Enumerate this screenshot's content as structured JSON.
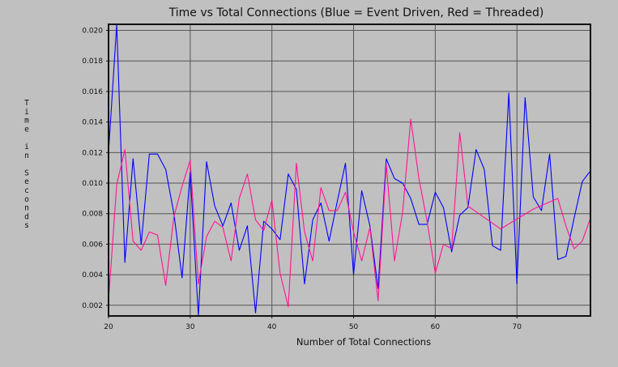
{
  "chart_data": {
    "type": "line",
    "title": "Time vs Total Connections (Blue = Event Driven, Red = Threaded)",
    "xlabel": "Number of Total Connections",
    "ylabel": "Time in Seconds",
    "xlim": [
      20,
      79
    ],
    "ylim": [
      0.0013,
      0.0204
    ],
    "xticks": [
      20,
      30,
      40,
      50,
      60,
      70
    ],
    "xtick_labels": [
      "20",
      "30",
      "40",
      "50",
      "60",
      "70"
    ],
    "yticks": [
      0.002,
      0.004,
      0.006,
      0.008,
      0.01,
      0.012,
      0.014,
      0.016,
      0.018,
      0.02
    ],
    "ytick_labels": [
      "0.002",
      "0.004",
      "0.006",
      "0.008",
      "0.010",
      "0.012",
      "0.014",
      "0.016",
      "0.018",
      "0.020"
    ],
    "grid": true,
    "legend": "none",
    "colors": {
      "background": "#c0c0c0",
      "plot_bg": "#c0c0c0",
      "grid": "#555555",
      "frame": "#111111"
    },
    "series": [
      {
        "color": "#0000ff",
        "x": [
          20,
          21,
          22,
          23,
          24,
          25,
          26,
          27,
          28,
          29,
          30,
          31,
          32,
          33,
          34,
          35,
          36,
          37,
          38,
          39,
          40,
          41,
          42,
          43,
          44,
          45,
          46,
          47,
          48,
          49,
          50,
          51,
          52,
          53,
          54,
          55,
          56,
          57,
          58,
          59,
          60,
          61,
          62,
          63,
          64,
          65,
          66,
          67,
          68,
          69,
          70,
          71,
          72,
          73,
          74,
          75,
          76,
          77,
          78,
          79
        ],
        "y": [
          0.012,
          0.0204,
          0.0048,
          0.0116,
          0.006,
          0.0119,
          0.0119,
          0.0109,
          0.008,
          0.0038,
          0.0107,
          0.0013,
          0.0114,
          0.0085,
          0.0072,
          0.0087,
          0.0056,
          0.0072,
          0.0015,
          0.0075,
          0.007,
          0.0063,
          0.0106,
          0.0096,
          0.0034,
          0.0076,
          0.0087,
          0.0062,
          0.0088,
          0.0113,
          0.004,
          0.0095,
          0.0072,
          0.0031,
          0.0116,
          0.0103,
          0.01,
          0.009,
          0.0073,
          0.0073,
          0.0094,
          0.0084,
          0.0055,
          0.0079,
          0.0084,
          0.0122,
          0.0109,
          0.0059,
          0.0056,
          0.0159,
          0.0034,
          0.0156,
          0.0091,
          0.0082,
          0.0119,
          0.005,
          0.0052,
          0.0077,
          0.0101,
          0.0108
        ]
      },
      {
        "color": "#ff1493",
        "x": [
          20,
          21,
          22,
          23,
          24,
          25,
          26,
          27,
          28,
          29,
          30,
          31,
          32,
          33,
          34,
          35,
          36,
          37,
          38,
          39,
          40,
          41,
          42,
          43,
          44,
          45,
          46,
          47,
          48,
          49,
          50,
          51,
          52,
          53,
          54,
          55,
          56,
          57,
          58,
          59,
          60,
          61,
          62,
          63,
          64,
          68,
          72,
          75,
          76,
          77,
          78,
          79
        ],
        "y": [
          0.0023,
          0.0099,
          0.0122,
          0.0062,
          0.0056,
          0.0068,
          0.0066,
          0.0033,
          0.0078,
          0.0098,
          0.0115,
          0.0034,
          0.0065,
          0.0075,
          0.0071,
          0.0049,
          0.009,
          0.0106,
          0.0076,
          0.0069,
          0.0089,
          0.0041,
          0.0019,
          0.0113,
          0.0068,
          0.0049,
          0.0097,
          0.0082,
          0.0082,
          0.0094,
          0.0068,
          0.0049,
          0.0071,
          0.0023,
          0.0112,
          0.0049,
          0.0081,
          0.0142,
          0.0103,
          0.0075,
          0.0041,
          0.006,
          0.0057,
          0.0133,
          0.0085,
          0.007,
          0.0083,
          0.009,
          0.0072,
          0.0057,
          0.0062,
          0.0077
        ]
      }
    ]
  }
}
